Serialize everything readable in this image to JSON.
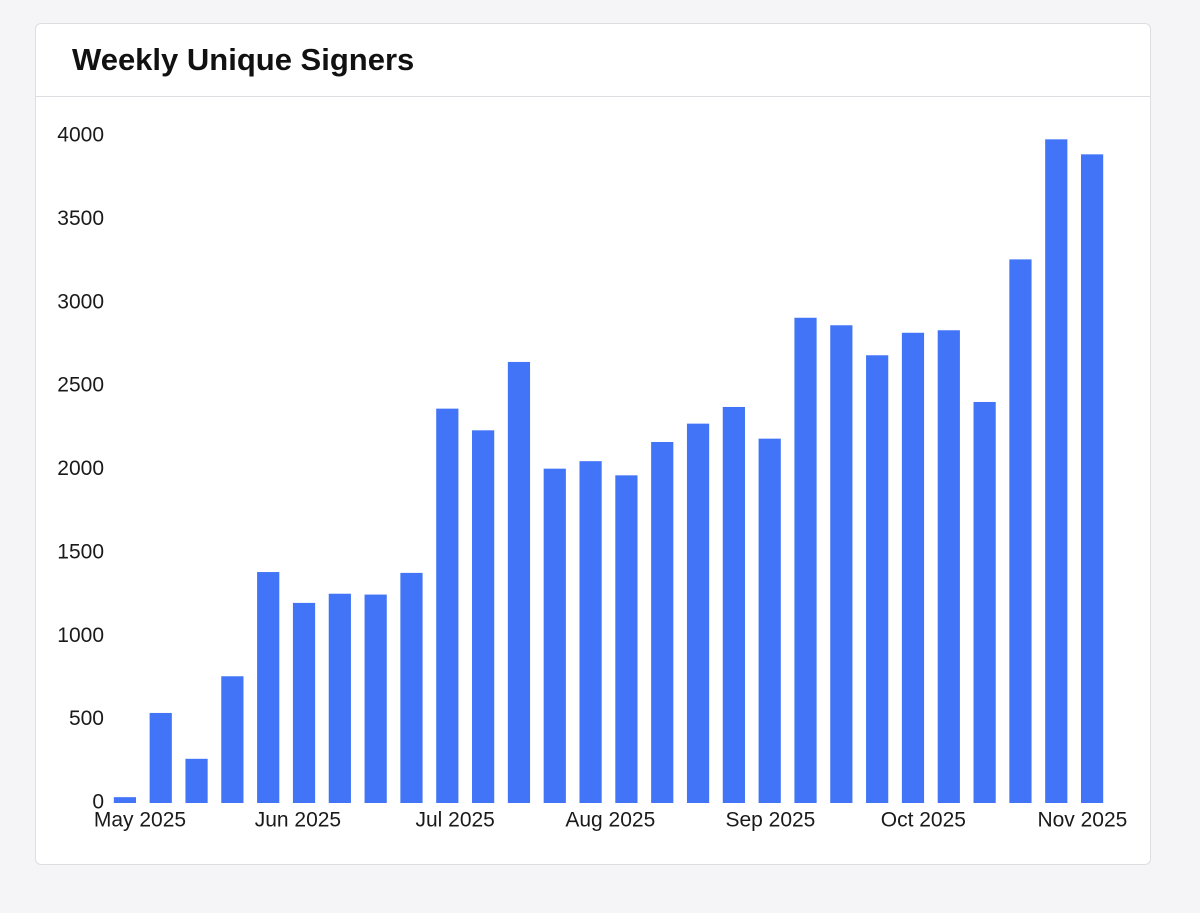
{
  "chart_data": {
    "type": "bar",
    "title": "Weekly Unique Signers",
    "categories": [
      null,
      null,
      null,
      null,
      null,
      null,
      null,
      null,
      null,
      null,
      null,
      null,
      null,
      null,
      null,
      null,
      null,
      null,
      null,
      null,
      null,
      null,
      null,
      null,
      null,
      null,
      null,
      null
    ],
    "values": [
      35,
      540,
      265,
      760,
      1385,
      1200,
      1255,
      1250,
      1380,
      2365,
      2235,
      2645,
      2005,
      2050,
      1965,
      2165,
      2275,
      2375,
      2185,
      2910,
      2865,
      2685,
      2820,
      2835,
      2405,
      3260,
      3980,
      3890
    ],
    "color": "#4174f6",
    "ylim": [
      0,
      4000
    ],
    "yticks": [
      0,
      500,
      1000,
      1500,
      2000,
      2500,
      3000,
      3500,
      4000
    ],
    "xlim": [
      -0.5,
      27.5
    ],
    "xticks": [
      {
        "value": 0.42,
        "label": "May 2025"
      },
      {
        "value": 4.83,
        "label": "Jun 2025"
      },
      {
        "value": 9.22,
        "label": "Jul 2025"
      },
      {
        "value": 13.55,
        "label": "Aug 2025"
      },
      {
        "value": 18.02,
        "label": "Sep 2025"
      },
      {
        "value": 22.29,
        "label": "Oct 2025"
      },
      {
        "value": 26.73,
        "label": "Nov 2025"
      }
    ],
    "grid": false
  }
}
